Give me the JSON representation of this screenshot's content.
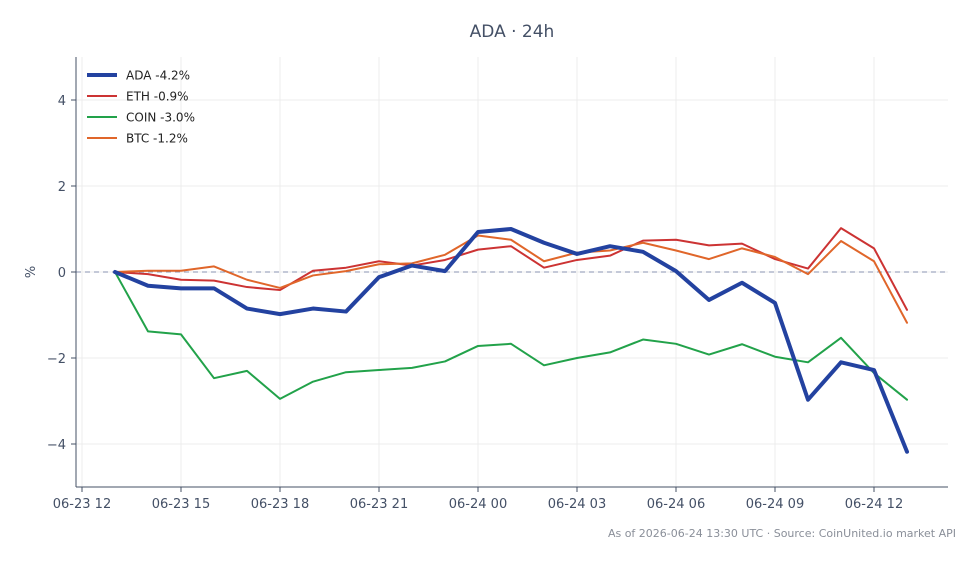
{
  "chart_data": {
    "type": "line",
    "title": "ADA · 24h",
    "ylabel": "%",
    "footer": "As of 2026-06-24 13:30 UTC · Source: CoinUnited.io market API",
    "x": [
      "06-23 13:00",
      "06-23 14:00",
      "06-23 15:00",
      "06-23 16:00",
      "06-23 17:00",
      "06-23 18:00",
      "06-23 19:00",
      "06-23 20:00",
      "06-23 21:00",
      "06-23 22:00",
      "06-23 23:00",
      "06-24 00:00",
      "06-24 01:00",
      "06-24 02:00",
      "06-24 03:00",
      "06-24 04:00",
      "06-24 05:00",
      "06-24 06:00",
      "06-24 07:00",
      "06-24 08:00",
      "06-24 09:00",
      "06-24 10:00",
      "06-24 11:00",
      "06-24 12:00",
      "06-24 13:00"
    ],
    "x_ticks": [
      "06-23 12",
      "06-23 15",
      "06-23 18",
      "06-23 21",
      "06-24 00",
      "06-24 03",
      "06-24 06",
      "06-24 09",
      "06-24 12"
    ],
    "x_tick_hours": [
      -1,
      2,
      5,
      8,
      11,
      14,
      17,
      20,
      23
    ],
    "ylim": [
      -5,
      5
    ],
    "y_ticks": [
      -4,
      -2,
      0,
      2,
      4
    ],
    "y_tick_labels": [
      "−4",
      "−2",
      "0",
      "2",
      "4"
    ],
    "legend_position": "top-left",
    "grid": true,
    "zero_line": true,
    "series": [
      {
        "name": "ADA -4.2%",
        "color": "#2342a0",
        "width": 4,
        "values": [
          0.0,
          -0.32,
          -0.38,
          -0.38,
          -0.85,
          -0.98,
          -0.85,
          -0.92,
          -0.12,
          0.15,
          0.02,
          0.93,
          1.0,
          0.68,
          0.42,
          0.6,
          0.47,
          0.02,
          -0.65,
          -0.25,
          -0.72,
          -2.97,
          -2.1,
          -2.28,
          -4.18
        ]
      },
      {
        "name": "ETH -0.9%",
        "color": "#cc3333",
        "width": 2,
        "values": [
          0.0,
          -0.05,
          -0.18,
          -0.2,
          -0.35,
          -0.42,
          0.03,
          0.1,
          0.25,
          0.15,
          0.28,
          0.52,
          0.6,
          0.1,
          0.28,
          0.38,
          0.73,
          0.75,
          0.62,
          0.66,
          0.3,
          0.08,
          1.02,
          0.55,
          -0.88
        ]
      },
      {
        "name": "COIN -3.0%",
        "color": "#22a24a",
        "width": 2,
        "values": [
          0.0,
          -1.38,
          -1.45,
          -2.47,
          -2.3,
          -2.95,
          -2.55,
          -2.33,
          -2.28,
          -2.23,
          -2.08,
          -1.72,
          -1.67,
          -2.17,
          -2.0,
          -1.87,
          -1.57,
          -1.67,
          -1.92,
          -1.68,
          -1.97,
          -2.1,
          -1.53,
          -2.35,
          -2.97
        ]
      },
      {
        "name": "BTC -1.2%",
        "color": "#e0662a",
        "width": 2,
        "values": [
          0.0,
          0.03,
          0.03,
          0.13,
          -0.18,
          -0.37,
          -0.08,
          0.02,
          0.18,
          0.2,
          0.4,
          0.85,
          0.75,
          0.25,
          0.45,
          0.5,
          0.68,
          0.5,
          0.3,
          0.55,
          0.35,
          -0.05,
          0.72,
          0.25,
          -1.18
        ]
      }
    ]
  }
}
